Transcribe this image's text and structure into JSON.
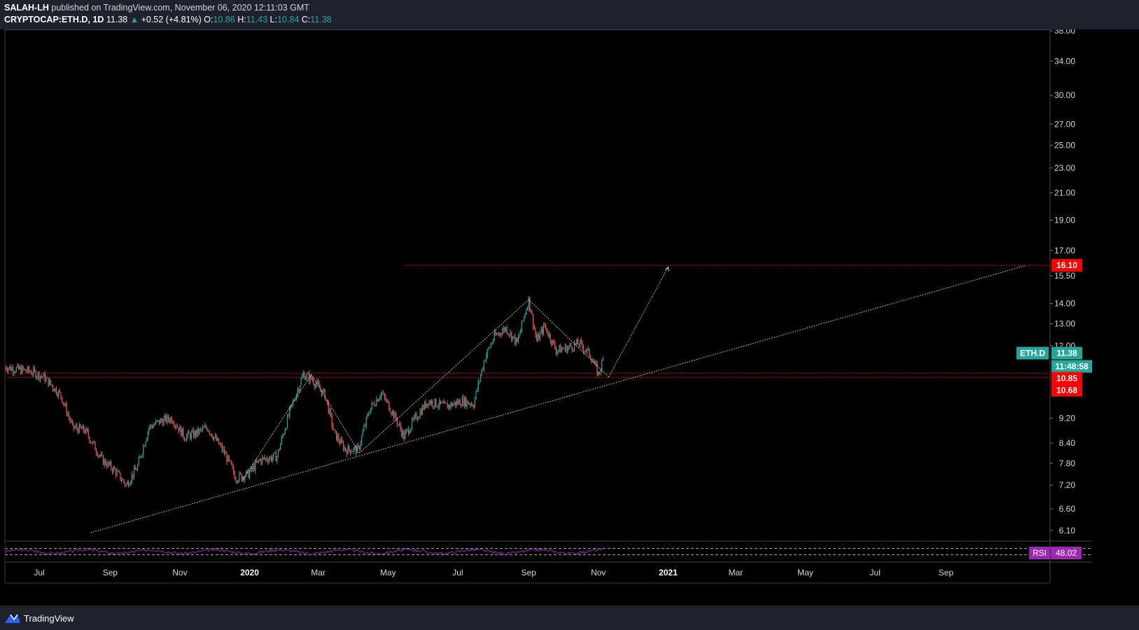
{
  "header": {
    "author": "SALAH-LH",
    "published": "published on TradingView.com, November 06, 2020 12:11:03 GMT",
    "symbol": "CRYPTOCAP:ETH.D, 1D",
    "last": "11.38",
    "change": "+0.52 (+4.81%)",
    "o_label": "O:",
    "o_value": "10.86",
    "h_label": "H:",
    "h_value": "11.43",
    "l_label": "L:",
    "l_value": "10.84",
    "c_label": "C:",
    "c_value": "11.38"
  },
  "footer": {
    "brand": "TradingView",
    "logo_icon": "tradingview-logo-icon"
  },
  "colors": {
    "up": "#26a69a",
    "down": "#ef5350",
    "rsi": "#9c27b0",
    "level": "#ff0000",
    "background": "#000000",
    "panel": "#1e222d",
    "text": "#d1d4dc"
  },
  "chart_data": {
    "type": "candlestick",
    "title": "CRYPTOCAP:ETH.D, 1D",
    "scale": "log",
    "grid": false,
    "y_ticks": [
      "38.00",
      "34.00",
      "30.00",
      "27.00",
      "25.00",
      "23.00",
      "21.00",
      "19.00",
      "17.00",
      "15.50",
      "14.00",
      "13.00",
      "12.00",
      "9.20",
      "8.40",
      "7.80",
      "7.20",
      "6.60",
      "6.10"
    ],
    "x_ticks": [
      "Jul",
      "Sep",
      "Nov",
      "2020",
      "Mar",
      "May",
      "Jul",
      "Sep",
      "Nov",
      "2021",
      "Mar",
      "May",
      "Jul",
      "Sep"
    ],
    "x_tick_bold": [
      "2020",
      "2021"
    ],
    "price_path": [
      [
        "2019-06-01",
        11.1
      ],
      [
        "2019-06-25",
        10.9
      ],
      [
        "2019-07-05",
        10.7
      ],
      [
        "2019-07-20",
        10.0
      ],
      [
        "2019-07-30",
        8.9
      ],
      [
        "2019-08-10",
        8.8
      ],
      [
        "2019-08-25",
        7.9
      ],
      [
        "2019-09-05",
        7.6
      ],
      [
        "2019-09-15",
        7.2
      ],
      [
        "2019-09-25",
        7.7
      ],
      [
        "2019-10-05",
        8.9
      ],
      [
        "2019-10-15",
        9.1
      ],
      [
        "2019-10-25",
        9.2
      ],
      [
        "2019-11-05",
        8.6
      ],
      [
        "2019-11-15",
        8.7
      ],
      [
        "2019-11-25",
        8.9
      ],
      [
        "2019-12-10",
        8.1
      ],
      [
        "2019-12-20",
        7.4
      ],
      [
        "2019-12-31",
        7.5
      ],
      [
        "2020-01-10",
        7.9
      ],
      [
        "2020-01-25",
        8.0
      ],
      [
        "2020-02-05",
        9.4
      ],
      [
        "2020-02-17",
        10.8
      ],
      [
        "2020-02-25",
        10.6
      ],
      [
        "2020-03-07",
        10.0
      ],
      [
        "2020-03-15",
        8.7
      ],
      [
        "2020-03-25",
        8.2
      ],
      [
        "2020-04-05",
        8.2
      ],
      [
        "2020-04-15",
        9.5
      ],
      [
        "2020-04-25",
        10.1
      ],
      [
        "2020-05-05",
        9.4
      ],
      [
        "2020-05-15",
        8.6
      ],
      [
        "2020-05-25",
        9.2
      ],
      [
        "2020-06-05",
        9.8
      ],
      [
        "2020-06-20",
        9.6
      ],
      [
        "2020-07-05",
        9.8
      ],
      [
        "2020-07-15",
        9.7
      ],
      [
        "2020-07-25",
        11.5
      ],
      [
        "2020-08-02",
        12.4
      ],
      [
        "2020-08-12",
        12.8
      ],
      [
        "2020-08-22",
        12.1
      ],
      [
        "2020-09-01",
        14.2
      ],
      [
        "2020-09-08",
        12.2
      ],
      [
        "2020-09-15",
        12.9
      ],
      [
        "2020-09-25",
        11.8
      ],
      [
        "2020-10-05",
        11.9
      ],
      [
        "2020-10-15",
        12.1
      ],
      [
        "2020-10-25",
        11.6
      ],
      [
        "2020-11-01",
        10.8
      ],
      [
        "2020-11-05",
        11.38
      ]
    ],
    "drawings": {
      "horizontal_levels": [
        {
          "price": 16.1,
          "from": "2020-05-15",
          "label": "16.10"
        },
        {
          "price": 10.85,
          "from": "2019-06-01",
          "label": "10.85"
        },
        {
          "price": 10.68,
          "from": "2019-06-01",
          "label": "10.68"
        }
      ],
      "rising_trendline": {
        "from": [
          "2019-08-15",
          6.05
        ],
        "to": [
          "2021-11-10",
          16.1
        ]
      },
      "wedge_lines": [
        [
          [
            "2019-12-25",
            7.3
          ],
          [
            "2020-02-24",
            10.8
          ]
        ],
        [
          [
            "2020-02-24",
            10.8
          ],
          [
            "2020-04-06",
            8.1
          ]
        ],
        [
          [
            "2020-04-06",
            8.1
          ],
          [
            "2020-09-01",
            14.2
          ]
        ],
        [
          [
            "2020-09-01",
            14.2
          ],
          [
            "2020-11-10",
            10.7
          ]
        ]
      ],
      "projection": {
        "from": [
          "2020-11-10",
          10.7
        ],
        "to": [
          "2021-01-01",
          16.0
        ]
      }
    },
    "price_labels": [
      {
        "text": "16.10",
        "color": "#ff0000"
      },
      {
        "text": "11.38",
        "color": "#26a69a"
      },
      {
        "text": "11:48:58",
        "color": "#26a69a"
      },
      {
        "text": "10.85",
        "color": "#ff0000"
      },
      {
        "text": "10.68",
        "color": "#ff0000"
      }
    ],
    "symbol_tag": "ETH.D",
    "rsi": {
      "name": "RSI",
      "value": 48.02,
      "label": "48.02",
      "upper": 70,
      "lower": 30
    }
  }
}
